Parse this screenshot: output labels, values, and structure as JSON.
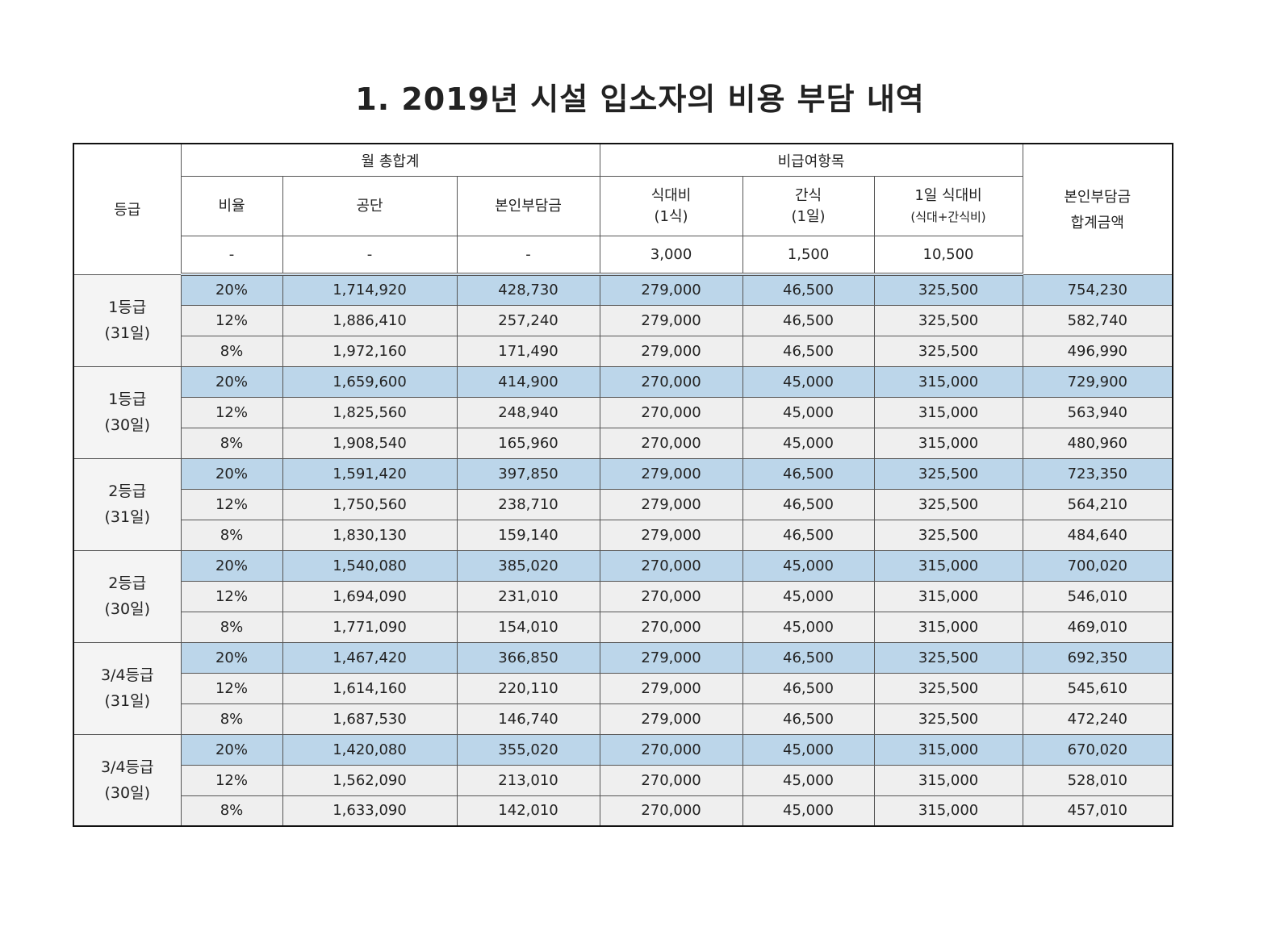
{
  "title": "1. 2019년 시설 입소자의 비용 부담 내역",
  "header": {
    "grade": "등급",
    "monthly_total": "월 총합계",
    "non_covered": "비급여항목",
    "ratio": "비율",
    "corporation": "공단",
    "self_pay": "본인부담금",
    "meal_line1": "식대비",
    "meal_line2": "(1식)",
    "snack_line1": "간식",
    "snack_line2": "(1일)",
    "daily_meal_line1": "1일 식대비",
    "daily_meal_line2": "(식대+간식비)",
    "total_line1": "본인부담금",
    "total_line2": "합계금액",
    "unit_ratio": "-",
    "unit_corporation": "-",
    "unit_self_pay": "-",
    "unit_meal": "3,000",
    "unit_snack": "1,500",
    "unit_daily_meal": "10,500"
  },
  "colors": {
    "highlight_row": "#bcd6ea",
    "alt_row": "#efefef"
  },
  "groups": [
    {
      "grade": "1등급",
      "days": "(31일)",
      "rows": [
        [
          "20%",
          "1,714,920",
          "428,730",
          "279,000",
          "46,500",
          "325,500",
          "754,230"
        ],
        [
          "12%",
          "1,886,410",
          "257,240",
          "279,000",
          "46,500",
          "325,500",
          "582,740"
        ],
        [
          "8%",
          "1,972,160",
          "171,490",
          "279,000",
          "46,500",
          "325,500",
          "496,990"
        ]
      ]
    },
    {
      "grade": "1등급",
      "days": "(30일)",
      "rows": [
        [
          "20%",
          "1,659,600",
          "414,900",
          "270,000",
          "45,000",
          "315,000",
          "729,900"
        ],
        [
          "12%",
          "1,825,560",
          "248,940",
          "270,000",
          "45,000",
          "315,000",
          "563,940"
        ],
        [
          "8%",
          "1,908,540",
          "165,960",
          "270,000",
          "45,000",
          "315,000",
          "480,960"
        ]
      ]
    },
    {
      "grade": "2등급",
      "days": "(31일)",
      "rows": [
        [
          "20%",
          "1,591,420",
          "397,850",
          "279,000",
          "46,500",
          "325,500",
          "723,350"
        ],
        [
          "12%",
          "1,750,560",
          "238,710",
          "279,000",
          "46,500",
          "325,500",
          "564,210"
        ],
        [
          "8%",
          "1,830,130",
          "159,140",
          "279,000",
          "46,500",
          "325,500",
          "484,640"
        ]
      ]
    },
    {
      "grade": "2등급",
      "days": "(30일)",
      "rows": [
        [
          "20%",
          "1,540,080",
          "385,020",
          "270,000",
          "45,000",
          "315,000",
          "700,020"
        ],
        [
          "12%",
          "1,694,090",
          "231,010",
          "270,000",
          "45,000",
          "315,000",
          "546,010"
        ],
        [
          "8%",
          "1,771,090",
          "154,010",
          "270,000",
          "45,000",
          "315,000",
          "469,010"
        ]
      ]
    },
    {
      "grade": "3/4등급",
      "days": "(31일)",
      "rows": [
        [
          "20%",
          "1,467,420",
          "366,850",
          "279,000",
          "46,500",
          "325,500",
          "692,350"
        ],
        [
          "12%",
          "1,614,160",
          "220,110",
          "279,000",
          "46,500",
          "325,500",
          "545,610"
        ],
        [
          "8%",
          "1,687,530",
          "146,740",
          "279,000",
          "46,500",
          "325,500",
          "472,240"
        ]
      ]
    },
    {
      "grade": "3/4등급",
      "days": "(30일)",
      "rows": [
        [
          "20%",
          "1,420,080",
          "355,020",
          "270,000",
          "45,000",
          "315,000",
          "670,020"
        ],
        [
          "12%",
          "1,562,090",
          "213,010",
          "270,000",
          "45,000",
          "315,000",
          "528,010"
        ],
        [
          "8%",
          "1,633,090",
          "142,010",
          "270,000",
          "45,000",
          "315,000",
          "457,010"
        ]
      ]
    }
  ]
}
